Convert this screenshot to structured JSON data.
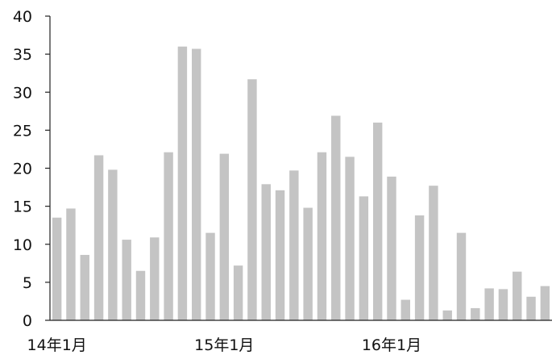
{
  "chart_data": {
    "type": "bar",
    "title": "",
    "xlabel": "",
    "ylabel": "",
    "ylim": [
      0,
      40
    ],
    "y_ticks": [
      0,
      5,
      10,
      15,
      20,
      25,
      30,
      35,
      40
    ],
    "grid": false,
    "bar_color": "#c4c4c4",
    "x_tick_labels": [
      {
        "index": 0,
        "text": "14年1月"
      },
      {
        "index": 12,
        "text": "15年1月"
      },
      {
        "index": 24,
        "text": "16年1月"
      }
    ],
    "values": [
      13.5,
      14.7,
      8.6,
      21.7,
      19.8,
      10.6,
      6.5,
      10.9,
      22.1,
      36.0,
      35.7,
      11.5,
      21.9,
      7.2,
      31.7,
      17.9,
      17.1,
      19.7,
      14.8,
      22.1,
      26.9,
      21.5,
      16.3,
      26.0,
      18.9,
      2.7,
      13.8,
      17.7,
      1.3,
      11.5,
      1.6,
      4.2,
      4.1,
      6.4,
      3.1,
      4.5
    ]
  }
}
